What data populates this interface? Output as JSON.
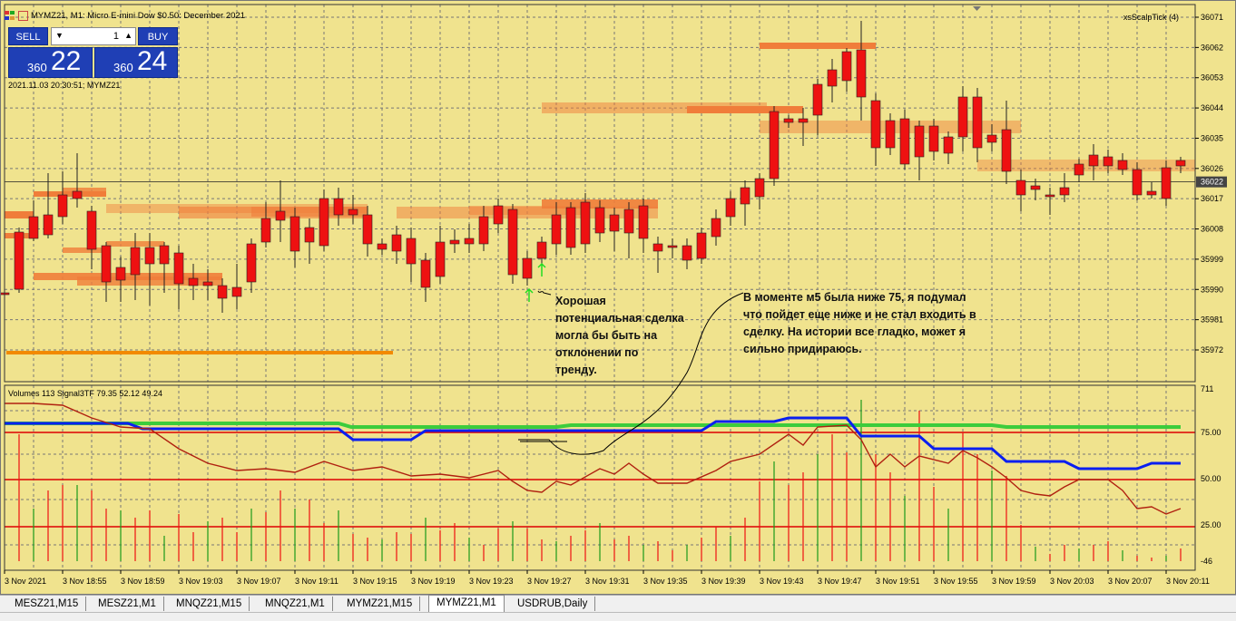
{
  "window": {
    "title": "MYMZ21, M1: Micro E-mini Dow $0.50: December 2021",
    "indicator_label": "xsScalpTick (4)",
    "timestamp_label": "2021.11.03 20:30:51; MYMZ21",
    "subwindow_label": "Volumes 113 Signal3TF 79.35 52.12 49.24"
  },
  "trade_panel": {
    "sell_label": "SELL",
    "buy_label": "BUY",
    "lot": "1",
    "bid_small": "360",
    "bid_big": "22",
    "ask_small": "360",
    "ask_big": "24"
  },
  "price_axis": [
    "36071",
    "36062",
    "36053",
    "36044",
    "36035",
    "36026",
    "36017",
    "36008",
    "35999",
    "35990",
    "35981",
    "35972"
  ],
  "current_price": "36022",
  "osc_axis": [
    "711",
    "75.00",
    "50.00",
    "25.00",
    "-46"
  ],
  "time_axis": [
    "3 Nov 2021",
    "3 Nov 18:55",
    "3 Nov 18:59",
    "3 Nov 19:03",
    "3 Nov 19:07",
    "3 Nov 19:11",
    "3 Nov 19:15",
    "3 Nov 19:19",
    "3 Nov 19:23",
    "3 Nov 19:27",
    "3 Nov 19:31",
    "3 Nov 19:35",
    "3 Nov 19:39",
    "3 Nov 19:43",
    "3 Nov 19:47",
    "3 Nov 19:51",
    "3 Nov 19:55",
    "3 Nov 19:59",
    "3 Nov 20:03",
    "3 Nov 20:07",
    "3 Nov 20:11"
  ],
  "annotations": {
    "left": "Хорошая\nпотенциальная сделка\nмогла бы быть на\nотклонении по\nтренду.",
    "right": "В моменте м5 была ниже 75, я подумал\nчто пойдет еще ниже и не стал входить в\nсделку. На истории все гладко, может я\nсильно придираюсь."
  },
  "tabs": [
    "MESZ21,M15",
    "MESZ21,M1",
    "MNQZ21,M15",
    "MNQZ21,M1",
    "MYMZ21,M15",
    "MYMZ21,M1",
    "USDRUB,Daily"
  ],
  "active_tab": 5,
  "colors": {
    "background": "#f0e38e",
    "bull": "#1a9a1a",
    "bear": "#ee1111",
    "zone": "#f07d3a",
    "blue_line": "#0a1ff0",
    "green_line": "#3ccc3c",
    "osc_line": "#b02010",
    "level_line": "#dd0000"
  }
}
